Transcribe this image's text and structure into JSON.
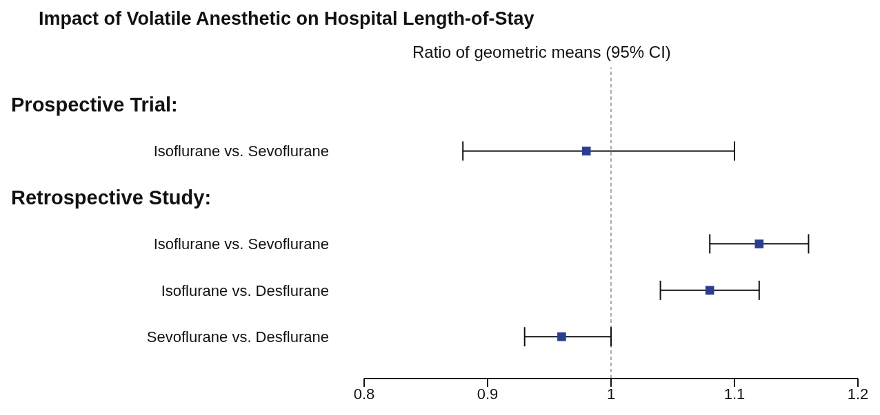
{
  "chart_data": {
    "type": "scatter",
    "orientation": "horizontal",
    "title": "Impact of Volatile Anesthetic on Hospital Length-of-Stay",
    "subtitle": "Ratio of geometric means (95% CI)",
    "annotations": [
      "Prospective Trial:",
      "Retrospective Study:"
    ],
    "categories": [
      null,
      "Isoflurane  vs. Sevoflurane",
      null,
      "Isoflurane  vs. Sevoflurane",
      "Isoflurane  vs. Desflurane",
      "Sevoflurane vs. Desflurane"
    ],
    "values": [
      null,
      0.98,
      null,
      1.12,
      1.08,
      0.96
    ],
    "errors": [
      null,
      [
        0.88,
        1.1
      ],
      null,
      [
        1.08,
        1.16
      ],
      [
        1.04,
        1.12
      ],
      [
        0.93,
        1.0
      ]
    ],
    "color": "#2b3d8f",
    "marker": "square",
    "xlim": [
      0.8,
      1.2
    ],
    "xticks": [
      0.8,
      0.9,
      1,
      1.1,
      1.2
    ],
    "ref_lines": [
      {
        "axis": "x",
        "value": 1,
        "color": "#aaaaaa",
        "line_style": "dashed"
      }
    ]
  }
}
